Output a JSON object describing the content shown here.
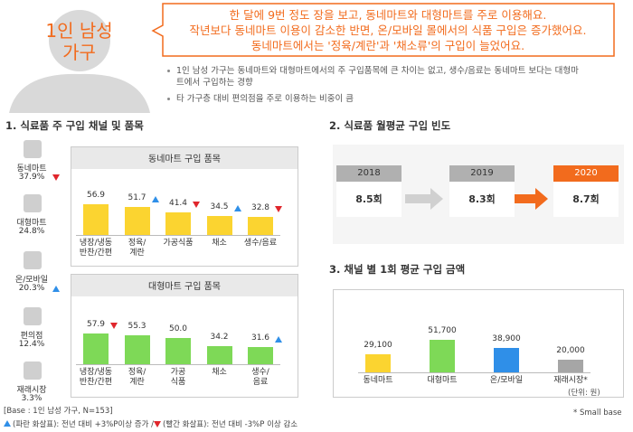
{
  "header": {
    "title": "1인 남성 가구",
    "callout": [
      "한 달에 9번 정도 장을 보고, 동네마트와 대형마트를 주로 이용해요.",
      "작년보다 동네마트 이용이 감소한 반면, 온/모바일 몰에서의 식품 구입은 증가했어요.",
      "동네마트에서는 '정육/계란'과 '채소류'의 구입이 늘었어요."
    ],
    "bullets": [
      "1인 남성 가구는 동네마트와 대형마트에서의 주 구입품목에 큰 차이는 없고, 생수/음료는 동네마트 보다는 대형마트에서 구입하는 경향",
      "타 가구층 대비 편의점을 주로 이용하는 비중이 큼"
    ]
  },
  "section1": {
    "title": "1. 식료품 주 구입 채널 및 품목",
    "channels": [
      {
        "name": "동네마트",
        "share": "37.9%",
        "trend": "down"
      },
      {
        "name": "대형마트",
        "share": "24.8%",
        "trend": "none"
      },
      {
        "name": "온/모바일",
        "share": "20.3%",
        "trend": "up"
      },
      {
        "name": "편의점",
        "share": "12.4%",
        "trend": "none"
      },
      {
        "name": "재래시장",
        "share": "3.3%",
        "trend": "none"
      }
    ]
  },
  "section2": {
    "title": "2. 식료품 월평균 구입 빈도",
    "years": [
      "2018",
      "2019",
      "2020"
    ],
    "values": [
      "8.5회",
      "8.3회",
      "8.7회"
    ]
  },
  "section3": {
    "title": "3. 채널 별 1회 평균 구입 금액",
    "unit": "(단위: 원)"
  },
  "chart_data": [
    {
      "type": "bar",
      "title": "동네마트 구입 품목",
      "categories": [
        "냉장/냉동\n반찬/간편",
        "정육/\n계란",
        "가공식품",
        "채소",
        "생수/음료"
      ],
      "values": [
        56.9,
        51.7,
        41.4,
        34.5,
        32.8
      ],
      "trends": [
        "none",
        "up",
        "down",
        "up",
        "down"
      ],
      "color": "#fbd430"
    },
    {
      "type": "bar",
      "title": "대형마트 구입 품목",
      "categories": [
        "냉장/냉동\n반찬/간편",
        "정육/\n계란",
        "가공\n식품",
        "채소",
        "생수/\n음료"
      ],
      "values": [
        57.9,
        55.3,
        50.0,
        34.2,
        31.6
      ],
      "value_labels": [
        "57.9",
        "55.3",
        "50.0",
        "34.2",
        "31.6"
      ],
      "trends": [
        "down",
        "none",
        "none",
        "none",
        "up"
      ],
      "color": "#7ed957"
    },
    {
      "type": "bar",
      "categories": [
        "동네마트",
        "대형마트",
        "온/모바일",
        "재래시장*"
      ],
      "values": [
        29100,
        51700,
        38900,
        20000
      ],
      "value_labels": [
        "29,100",
        "51,700",
        "38,900",
        "20,000"
      ],
      "colors": [
        "#fbd430",
        "#7ed957",
        "#2f8fe8",
        "#a6a6a6"
      ]
    }
  ],
  "footer": {
    "base": "[Base : 1인 남성 가구, N=153]",
    "legend_up": "(파란 화살표): 전년 대비 +3%P이상 증가 /",
    "legend_down": "(빨간 화살표): 전년 대비 -3%P 이상 감소",
    "small_base": "* Small base"
  }
}
